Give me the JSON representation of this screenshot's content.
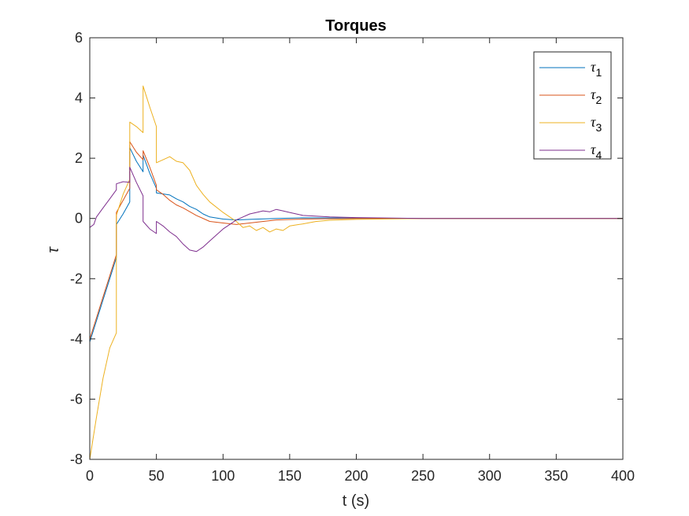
{
  "chart_data": {
    "type": "line",
    "title": "Torques",
    "xlabel": "t (s)",
    "ylabel": "τ",
    "xlim": [
      0,
      400
    ],
    "ylim": [
      -8,
      6
    ],
    "xticks": [
      0,
      50,
      100,
      150,
      200,
      250,
      300,
      350,
      400
    ],
    "yticks": [
      -8,
      -6,
      -4,
      -2,
      0,
      2,
      4,
      6
    ],
    "grid": false,
    "legend_position": "top-right",
    "series": [
      {
        "name": "τ1",
        "base": "τ",
        "sub": "1",
        "color": "#0072BD",
        "points": [
          [
            0,
            -4.1
          ],
          [
            5,
            -3.4
          ],
          [
            10,
            -2.7
          ],
          [
            15,
            -2.0
          ],
          [
            20,
            -1.3
          ],
          [
            20,
            -0.2
          ],
          [
            25,
            0.15
          ],
          [
            30,
            0.55
          ],
          [
            30,
            2.35
          ],
          [
            35,
            1.9
          ],
          [
            40,
            1.55
          ],
          [
            40,
            2.1
          ],
          [
            45,
            1.5
          ],
          [
            50,
            1.0
          ],
          [
            50,
            0.85
          ],
          [
            60,
            0.78
          ],
          [
            65,
            0.65
          ],
          [
            70,
            0.55
          ],
          [
            75,
            0.4
          ],
          [
            80,
            0.3
          ],
          [
            85,
            0.15
          ],
          [
            90,
            0.05
          ],
          [
            100,
            -0.02
          ],
          [
            110,
            -0.05
          ],
          [
            120,
            -0.03
          ],
          [
            140,
            0.0
          ],
          [
            160,
            0.02
          ],
          [
            200,
            0.01
          ],
          [
            250,
            0.0
          ],
          [
            400,
            0.0
          ]
        ]
      },
      {
        "name": "τ2",
        "base": "τ",
        "sub": "2",
        "color": "#D95319",
        "points": [
          [
            0,
            -4.0
          ],
          [
            5,
            -3.3
          ],
          [
            10,
            -2.6
          ],
          [
            15,
            -1.9
          ],
          [
            20,
            -1.2
          ],
          [
            20,
            0.2
          ],
          [
            25,
            0.6
          ],
          [
            30,
            1.0
          ],
          [
            30,
            2.55
          ],
          [
            35,
            2.2
          ],
          [
            40,
            1.95
          ],
          [
            40,
            2.25
          ],
          [
            45,
            1.7
          ],
          [
            50,
            1.1
          ],
          [
            50,
            0.95
          ],
          [
            55,
            0.8
          ],
          [
            60,
            0.6
          ],
          [
            65,
            0.45
          ],
          [
            70,
            0.35
          ],
          [
            80,
            0.1
          ],
          [
            90,
            -0.1
          ],
          [
            100,
            -0.15
          ],
          [
            110,
            -0.2
          ],
          [
            120,
            -0.15
          ],
          [
            140,
            -0.05
          ],
          [
            160,
            -0.02
          ],
          [
            200,
            0.0
          ],
          [
            250,
            0.0
          ],
          [
            400,
            0.0
          ]
        ]
      },
      {
        "name": "τ3",
        "base": "τ",
        "sub": "3",
        "color": "#EDB120",
        "points": [
          [
            0,
            -8.0
          ],
          [
            5,
            -6.6
          ],
          [
            10,
            -5.3
          ],
          [
            15,
            -4.3
          ],
          [
            20,
            -3.8
          ],
          [
            20,
            0.1
          ],
          [
            25,
            0.8
          ],
          [
            30,
            1.3
          ],
          [
            30,
            3.2
          ],
          [
            35,
            3.05
          ],
          [
            40,
            2.85
          ],
          [
            40,
            4.4
          ],
          [
            45,
            3.7
          ],
          [
            50,
            3.05
          ],
          [
            50,
            1.85
          ],
          [
            55,
            1.95
          ],
          [
            60,
            2.05
          ],
          [
            65,
            1.9
          ],
          [
            70,
            1.85
          ],
          [
            75,
            1.6
          ],
          [
            80,
            1.1
          ],
          [
            85,
            0.8
          ],
          [
            90,
            0.55
          ],
          [
            100,
            0.2
          ],
          [
            105,
            0.05
          ],
          [
            110,
            -0.1
          ],
          [
            115,
            -0.3
          ],
          [
            120,
            -0.25
          ],
          [
            125,
            -0.4
          ],
          [
            130,
            -0.3
          ],
          [
            135,
            -0.45
          ],
          [
            140,
            -0.35
          ],
          [
            145,
            -0.4
          ],
          [
            150,
            -0.25
          ],
          [
            160,
            -0.18
          ],
          [
            170,
            -0.1
          ],
          [
            180,
            -0.06
          ],
          [
            200,
            -0.03
          ],
          [
            250,
            0.0
          ],
          [
            400,
            0.0
          ]
        ]
      },
      {
        "name": "τ4",
        "base": "τ",
        "sub": "4",
        "color": "#7E2F8E",
        "points": [
          [
            0,
            -0.3
          ],
          [
            3,
            -0.2
          ],
          [
            5,
            0.05
          ],
          [
            10,
            0.35
          ],
          [
            15,
            0.65
          ],
          [
            20,
            0.95
          ],
          [
            20,
            1.15
          ],
          [
            25,
            1.22
          ],
          [
            30,
            1.2
          ],
          [
            30,
            1.7
          ],
          [
            35,
            1.2
          ],
          [
            40,
            0.75
          ],
          [
            40,
            -0.1
          ],
          [
            45,
            -0.35
          ],
          [
            50,
            -0.5
          ],
          [
            50,
            -0.1
          ],
          [
            55,
            -0.25
          ],
          [
            60,
            -0.45
          ],
          [
            65,
            -0.6
          ],
          [
            70,
            -0.85
          ],
          [
            75,
            -1.05
          ],
          [
            80,
            -1.1
          ],
          [
            85,
            -0.95
          ],
          [
            90,
            -0.75
          ],
          [
            95,
            -0.55
          ],
          [
            100,
            -0.35
          ],
          [
            105,
            -0.2
          ],
          [
            110,
            -0.05
          ],
          [
            115,
            0.05
          ],
          [
            120,
            0.15
          ],
          [
            125,
            0.2
          ],
          [
            130,
            0.25
          ],
          [
            135,
            0.22
          ],
          [
            140,
            0.3
          ],
          [
            145,
            0.25
          ],
          [
            150,
            0.2
          ],
          [
            155,
            0.15
          ],
          [
            160,
            0.1
          ],
          [
            180,
            0.05
          ],
          [
            200,
            0.03
          ],
          [
            250,
            0.0
          ],
          [
            400,
            0.0
          ]
        ]
      }
    ]
  }
}
